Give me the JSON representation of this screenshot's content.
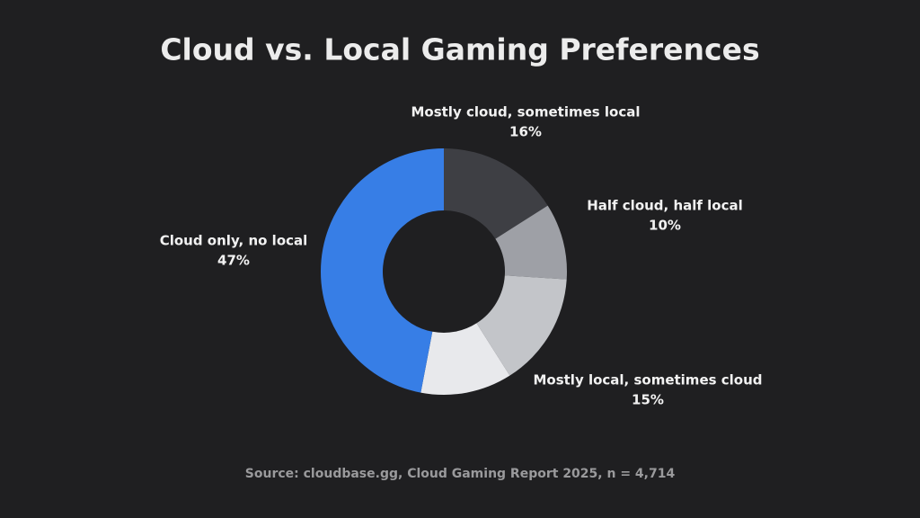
{
  "chart_data": {
    "type": "donut",
    "title": "Cloud vs. Local Gaming Preferences",
    "source": "Source: cloudbase.gg, Cloud Gaming Report 2025, n = 4,714",
    "categories": [
      "Mostly cloud, sometimes local",
      "Half cloud, half local",
      "Mostly local, sometimes cloud",
      null,
      "Cloud only, no local"
    ],
    "values": [
      16,
      10,
      15,
      12,
      47
    ],
    "value_labels": [
      "16%",
      "10%",
      "15%",
      null,
      "47%"
    ],
    "colors": [
      "#3e3f44",
      "#9ea0a6",
      "#c3c5c9",
      "#e8e9ec",
      "#377ee6"
    ]
  }
}
